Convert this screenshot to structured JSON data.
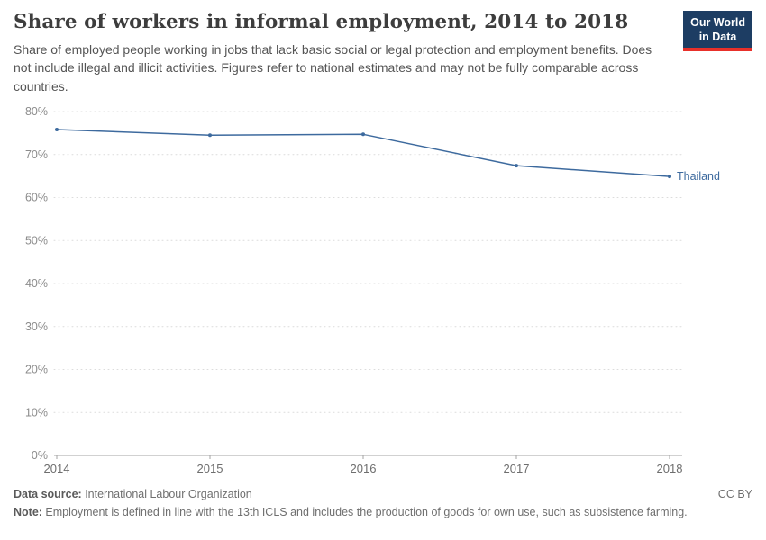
{
  "logo": {
    "line1": "Our World",
    "line2": "in Data"
  },
  "header": {
    "title": "Share of workers in informal employment, 2014 to 2018",
    "subtitle": "Share of employed people working in jobs that lack basic social or legal protection and employment benefits. Does not include illegal and illicit activities. Figures refer to national estimates and may not be fully comparable across countries."
  },
  "chart_data": {
    "type": "line",
    "title": "Share of workers in informal employment, 2014 to 2018",
    "x": [
      2014,
      2015,
      2016,
      2017,
      2018
    ],
    "x_tick_labels": [
      "2014",
      "2015",
      "2016",
      "2017",
      "2018"
    ],
    "series": [
      {
        "name": "Thailand",
        "color": "#3d6a9e",
        "values": [
          75.8,
          74.5,
          74.7,
          67.4,
          64.9
        ]
      }
    ],
    "ylim": [
      0,
      80
    ],
    "yticks": [
      0,
      10,
      20,
      30,
      40,
      50,
      60,
      70,
      80
    ],
    "ytick_suffix": "%",
    "grid": "dotted horizontal",
    "legend_position": "end-of-line label",
    "colors": {
      "grid": "#dcdcdc",
      "axis": "#a3a3a3",
      "tick_text": "#8c8c8c",
      "year_text": "#6e6e6e"
    }
  },
  "footer": {
    "source_label": "Data source:",
    "source_text": " International Labour Organization",
    "note_label": "Note:",
    "note_text": " Employment is defined in line with the 13th ICLS and includes the production of goods for own use, such as subsistence farming.",
    "license": "CC BY"
  }
}
